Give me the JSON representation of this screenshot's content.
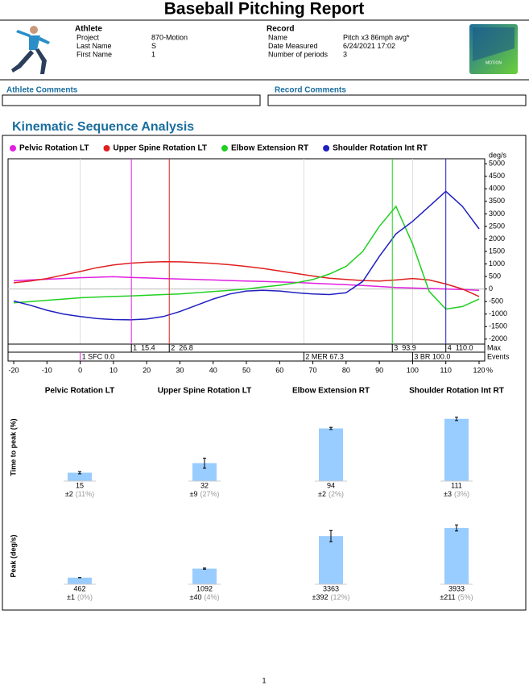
{
  "header": {
    "title": "Baseball Pitching Report"
  },
  "athlete": {
    "heading": "Athlete",
    "rows": [
      [
        "Project",
        "870-Motion"
      ],
      [
        "Last Name",
        "S"
      ],
      [
        "First Name",
        "1"
      ]
    ]
  },
  "record": {
    "heading": "Record",
    "rows": [
      [
        "Name",
        "Pitch x3 86mph avg*"
      ],
      [
        "Date Measured",
        "6/24/2021 17:02"
      ],
      [
        "Number of periods",
        "3"
      ]
    ]
  },
  "logo": {
    "label": "MOTION"
  },
  "comments": [
    "Athlete Comments",
    "Record Comments"
  ],
  "section_title": "Kinematic Sequence Analysis",
  "chart_data": [
    {
      "type": "line",
      "x": [
        -20,
        -15,
        -10,
        -5,
        0,
        5,
        10,
        15,
        20,
        25,
        30,
        35,
        40,
        45,
        50,
        55,
        60,
        65,
        70,
        75,
        80,
        85,
        90,
        95,
        100,
        105,
        110,
        115,
        120
      ],
      "series": [
        {
          "name": "Pelvic Rotation LT",
          "color": "#e020e0",
          "values": [
            330,
            360,
            390,
            420,
            450,
            470,
            490,
            462,
            440,
            420,
            400,
            380,
            360,
            340,
            320,
            300,
            280,
            260,
            230,
            200,
            170,
            140,
            100,
            60,
            40,
            20,
            0,
            -20,
            -50
          ]
        },
        {
          "name": "Upper Spine Rotation LT",
          "color": "#e02020",
          "values": [
            250,
            320,
            420,
            560,
            700,
            850,
            960,
            1030,
            1070,
            1090,
            1085,
            1060,
            1020,
            970,
            900,
            820,
            720,
            620,
            520,
            430,
            380,
            340,
            320,
            360,
            420,
            360,
            200,
            0,
            -300
          ]
        },
        {
          "name": "Elbow Extension RT",
          "color": "#20d020",
          "values": [
            -550,
            -500,
            -450,
            -400,
            -350,
            -320,
            -300,
            -280,
            -250,
            -220,
            -200,
            -150,
            -100,
            -50,
            0,
            80,
            150,
            250,
            380,
            600,
            900,
            1500,
            2500,
            3300,
            1800,
            -100,
            -800,
            -700,
            -400
          ]
        },
        {
          "name": "Shoulder Rotation Int RT",
          "color": "#2020c0",
          "values": [
            -480,
            -650,
            -850,
            -1000,
            -1100,
            -1180,
            -1220,
            -1230,
            -1200,
            -1100,
            -900,
            -650,
            -400,
            -200,
            -80,
            -50,
            -80,
            -150,
            -200,
            -220,
            -150,
            300,
            1300,
            2200,
            2700,
            3300,
            3900,
            3300,
            2400
          ]
        }
      ],
      "xlim": [
        -21.7,
        121.7
      ],
      "ylim": [
        -2200,
        5200
      ],
      "xticks": [
        -20,
        -10,
        0,
        10,
        20,
        30,
        40,
        50,
        60,
        70,
        80,
        90,
        100,
        110,
        120
      ],
      "yticks": [
        -2000,
        -1500,
        -1000,
        -500,
        0,
        500,
        1000,
        1500,
        2000,
        2500,
        3000,
        3500,
        4000,
        4500,
        5000
      ],
      "y_unit": "deg/s",
      "x_unit": "%",
      "legend": "top",
      "max_row": {
        "label": "Max",
        "markers": [
          {
            "value": 15.4,
            "label": "1  15.4"
          },
          {
            "value": 26.8,
            "label": "2  26.8"
          },
          {
            "value": 93.9,
            "label": "3  93.9"
          },
          {
            "value": 110.0,
            "label": "4  110.0"
          }
        ]
      },
      "events_row": {
        "label": "Events",
        "markers": [
          {
            "value": 0,
            "label": "1 SFC 0.0"
          },
          {
            "value": 67.3,
            "label": "2 MER 67.3"
          },
          {
            "value": 100,
            "label": "3 BR 100.0"
          }
        ]
      }
    },
    {
      "type": "bar",
      "ylabel": "Time to peak (%)",
      "color": "#99ccff",
      "categories": [
        "Pelvic Rotation LT",
        "Upper Spine Rotation LT",
        "Elbow Extension RT",
        "Shoulder Rotation Int RT"
      ],
      "values": [
        15,
        32,
        94,
        111
      ],
      "errors": [
        2,
        9,
        2,
        3
      ],
      "error_labels": [
        "±2",
        "±9",
        "±2",
        "±3"
      ],
      "pct_labels": [
        "(11%)",
        "(27%)",
        "(2%)",
        "(3%)"
      ],
      "ylim": [
        0,
        125
      ]
    },
    {
      "type": "bar",
      "ylabel": "Peak (deg/s)",
      "color": "#99ccff",
      "values": [
        462,
        1092,
        3363,
        3933
      ],
      "errors": [
        1,
        40,
        392,
        211
      ],
      "error_labels": [
        "±1",
        "±40",
        "±392",
        "±211"
      ],
      "pct_labels": [
        "(0%)",
        "(4%)",
        "(12%)",
        "(5%)"
      ],
      "ylim": [
        0,
        4500
      ]
    }
  ],
  "page_number": "1"
}
